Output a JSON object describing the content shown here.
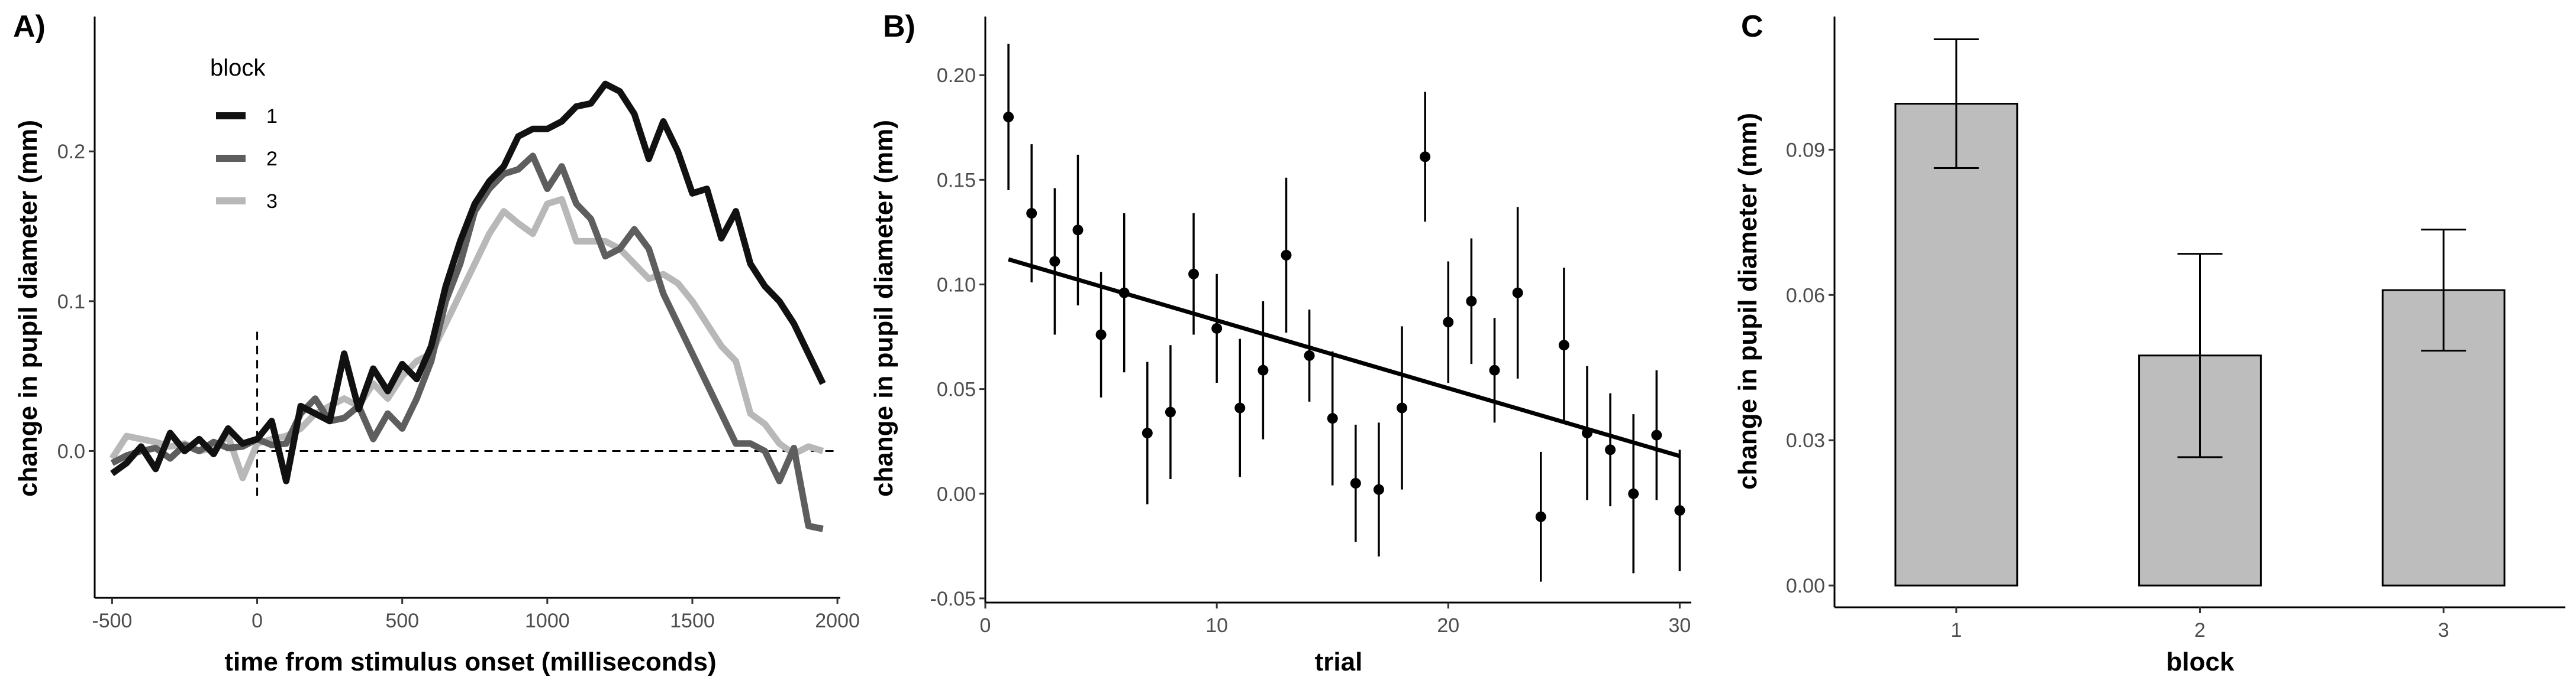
{
  "chart_data": [
    {
      "panel": "A)",
      "type": "line",
      "xlabel": "time from stimulus onset (milliseconds)",
      "ylabel": "change in pupil diameter (mm)",
      "xlim": [
        -560,
        2010
      ],
      "ylim": [
        -0.098,
        0.29
      ],
      "xticks": [
        -500,
        0,
        500,
        1000,
        1500,
        2000
      ],
      "xtick_labels": [
        "-500",
        "0",
        "500",
        "1000",
        "1500",
        "2000"
      ],
      "yticks": [
        0.0,
        0.1,
        0.2
      ],
      "ytick_labels": [
        "0.0",
        "0.1",
        "0.2"
      ],
      "reference_lines": [
        {
          "orientation": "vertical",
          "x": 0,
          "y_from": -0.03,
          "y_to": 0.08,
          "style": "dashed"
        },
        {
          "orientation": "horizontal",
          "y": 0,
          "x_from": 0,
          "x_to": 2000,
          "style": "dashed"
        }
      ],
      "legend": {
        "title": "block",
        "position": "top-left"
      },
      "x": [
        -500,
        -450,
        -400,
        -350,
        -300,
        -250,
        -200,
        -150,
        -100,
        -50,
        0,
        50,
        100,
        150,
        200,
        250,
        300,
        350,
        400,
        450,
        500,
        550,
        600,
        650,
        700,
        750,
        800,
        850,
        900,
        950,
        1000,
        1050,
        1100,
        1150,
        1200,
        1250,
        1300,
        1350,
        1400,
        1450,
        1500,
        1550,
        1600,
        1650,
        1700,
        1750,
        1800,
        1850,
        1900,
        1950
      ],
      "series": [
        {
          "name": "1",
          "color": "#111111",
          "values": [
            -0.015,
            -0.008,
            0.003,
            -0.012,
            0.012,
            0.0,
            0.008,
            -0.002,
            0.015,
            0.005,
            0.008,
            0.02,
            -0.02,
            0.03,
            0.025,
            0.02,
            0.065,
            0.028,
            0.055,
            0.04,
            0.058,
            0.048,
            0.07,
            0.11,
            0.14,
            0.165,
            0.18,
            0.19,
            0.21,
            0.215,
            0.215,
            0.22,
            0.23,
            0.232,
            0.245,
            0.24,
            0.225,
            0.195,
            0.22,
            0.2,
            0.172,
            0.175,
            0.142,
            0.16,
            0.125,
            0.11,
            0.1,
            0.085,
            0.065,
            0.045
          ]
        },
        {
          "name": "2",
          "color": "#5e5e5e",
          "values": [
            -0.008,
            -0.003,
            0.0,
            0.002,
            -0.005,
            0.004,
            0.0,
            0.006,
            0.002,
            0.003,
            0.008,
            0.004,
            0.005,
            0.025,
            0.035,
            0.02,
            0.022,
            0.03,
            0.008,
            0.025,
            0.015,
            0.035,
            0.06,
            0.1,
            0.125,
            0.16,
            0.175,
            0.185,
            0.188,
            0.197,
            0.175,
            0.19,
            0.165,
            0.155,
            0.13,
            0.135,
            0.148,
            0.135,
            0.105,
            0.085,
            0.065,
            0.045,
            0.025,
            0.005,
            0.005,
            0.0,
            -0.02,
            0.002,
            -0.05,
            -0.052
          ]
        },
        {
          "name": "3",
          "color": "#b8b8b8",
          "values": [
            -0.005,
            0.01,
            0.008,
            0.006,
            0.003,
            0.005,
            0.0,
            0.002,
            0.01,
            -0.018,
            0.005,
            0.008,
            0.01,
            0.015,
            0.025,
            0.03,
            0.035,
            0.03,
            0.045,
            0.035,
            0.05,
            0.06,
            0.065,
            0.085,
            0.105,
            0.125,
            0.145,
            0.16,
            0.152,
            0.145,
            0.165,
            0.168,
            0.14,
            0.14,
            0.14,
            0.135,
            0.125,
            0.115,
            0.118,
            0.112,
            0.1,
            0.085,
            0.07,
            0.06,
            0.025,
            0.018,
            0.005,
            -0.002,
            0.003,
            0.0
          ]
        }
      ]
    },
    {
      "panel": "B)",
      "type": "scatter",
      "xlabel": "trial",
      "ylabel": "change in pupil diameter (mm)",
      "xlim": [
        0,
        30.5
      ],
      "ylim": [
        -0.052,
        0.228
      ],
      "xticks": [
        0,
        10,
        20,
        30
      ],
      "xtick_labels": [
        "0",
        "10",
        "20",
        "30"
      ],
      "yticks": [
        -0.05,
        0.0,
        0.05,
        0.1,
        0.15,
        0.2
      ],
      "ytick_labels": [
        "-0.05",
        "0.00",
        "0.05",
        "0.10",
        "0.15",
        "0.20"
      ],
      "x": [
        1,
        2,
        3,
        4,
        5,
        6,
        7,
        8,
        9,
        10,
        11,
        12,
        13,
        14,
        15,
        16,
        17,
        18,
        19,
        20,
        21,
        22,
        23,
        24,
        25,
        26,
        27,
        28,
        29,
        30
      ],
      "y": [
        0.18,
        0.134,
        0.111,
        0.126,
        0.076,
        0.096,
        0.029,
        0.039,
        0.105,
        0.079,
        0.041,
        0.059,
        0.114,
        0.066,
        0.036,
        0.005,
        0.002,
        0.041,
        0.161,
        0.082,
        0.092,
        0.059,
        0.096,
        -0.011,
        0.071,
        0.029,
        0.021,
        0.0,
        0.028,
        -0.008
      ],
      "error": [
        0.035,
        0.033,
        0.035,
        0.036,
        0.03,
        0.038,
        0.034,
        0.032,
        0.029,
        0.026,
        0.033,
        0.033,
        0.037,
        0.022,
        0.032,
        0.028,
        0.032,
        0.039,
        0.031,
        0.029,
        0.03,
        0.025,
        0.041,
        0.031,
        0.037,
        0.032,
        0.027,
        0.038,
        0.031,
        0.029
      ],
      "trend_line": {
        "x": [
          1,
          30
        ],
        "y": [
          0.112,
          0.018
        ]
      }
    },
    {
      "panel": "C",
      "type": "bar",
      "xlabel": "block",
      "ylabel": "change in pupil diameter (mm)",
      "categories": [
        "1",
        "2",
        "3"
      ],
      "values": [
        0.0995,
        0.0475,
        0.061
      ],
      "error": [
        0.0133,
        0.021,
        0.0125
      ],
      "ylim": [
        -0.0045,
        0.1175
      ],
      "yticks": [
        0.0,
        0.03,
        0.06,
        0.09
      ],
      "ytick_labels": [
        "0.00",
        "0.03",
        "0.06",
        "0.09"
      ],
      "bar_color": "#bdbdbd"
    }
  ]
}
